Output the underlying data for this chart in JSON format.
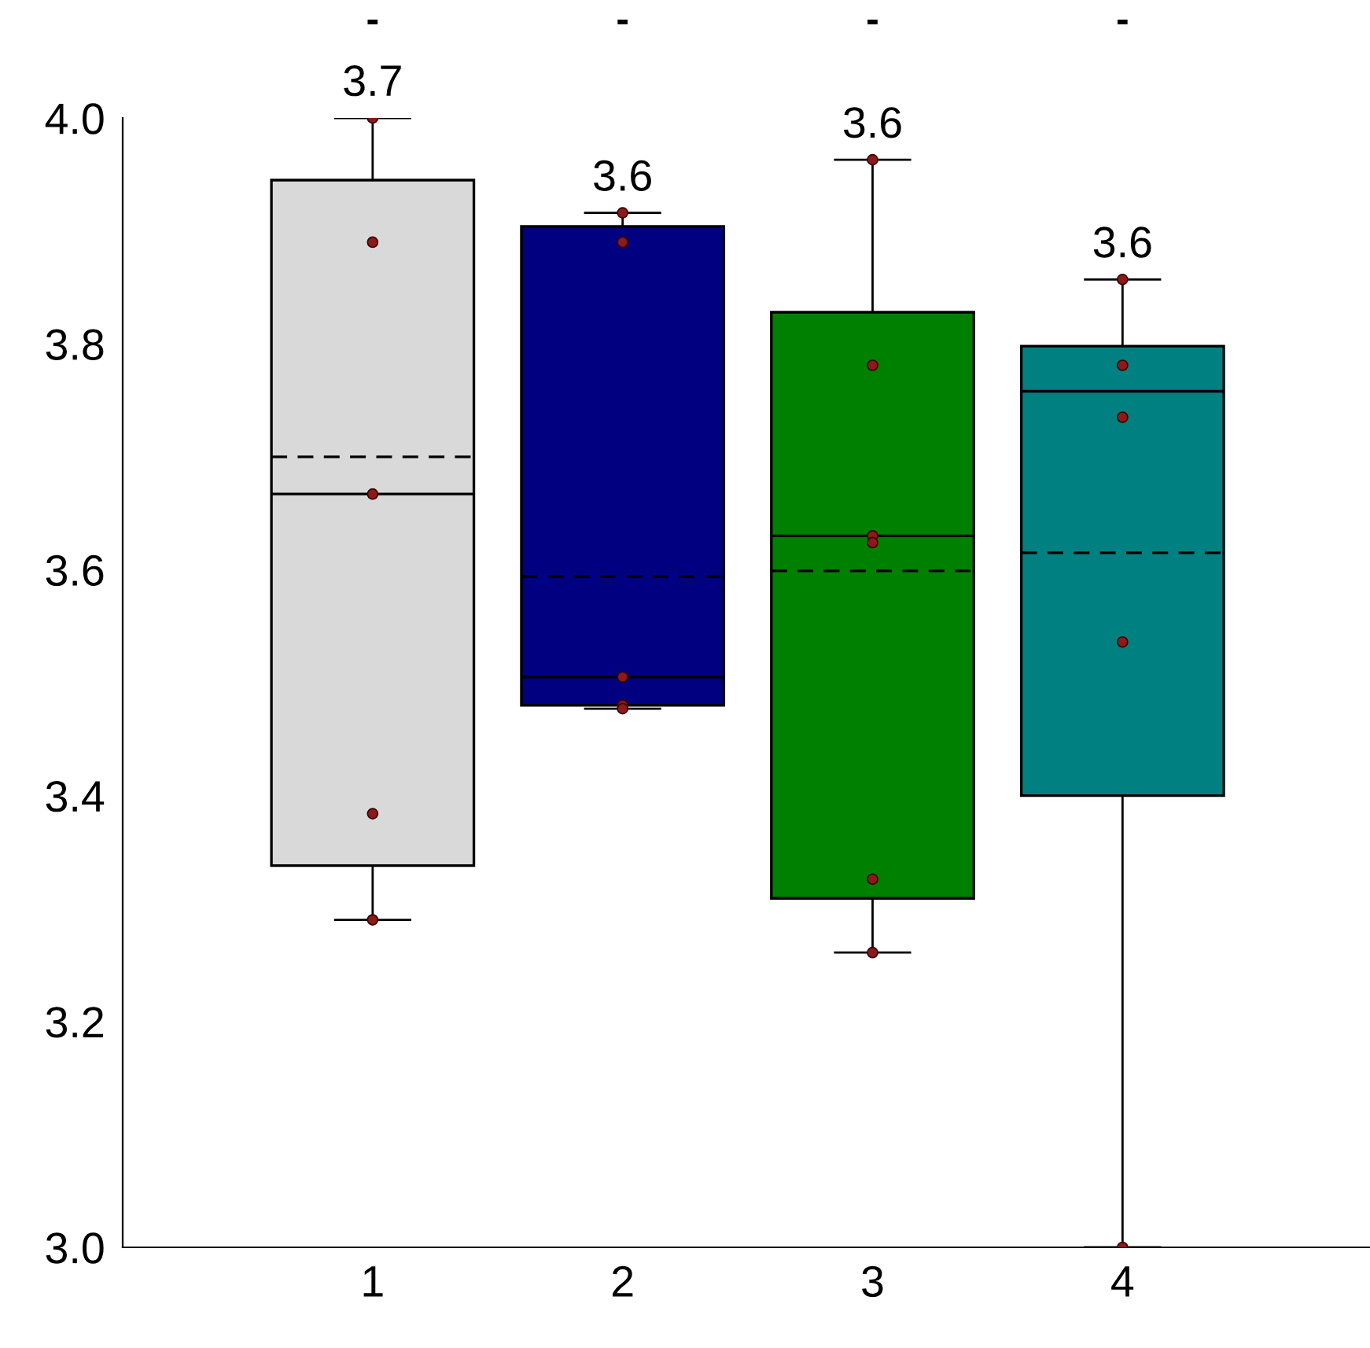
{
  "chart_data": {
    "type": "box",
    "categories": [
      "1",
      "2",
      "3",
      "4"
    ],
    "colors": [
      "#d9d9d9",
      "#000080",
      "#008000",
      "#008080"
    ],
    "boxes": [
      {
        "low": 3.29,
        "q1": 3.338,
        "median": 3.667,
        "q3": 3.945,
        "high": 4.0,
        "mean": 3.7
      },
      {
        "low": 3.477,
        "q1": 3.48,
        "median": 3.505,
        "q3": 3.904,
        "high": 3.916,
        "mean": 3.594
      },
      {
        "low": 3.261,
        "q1": 3.309,
        "median": 3.63,
        "q3": 3.828,
        "high": 3.963,
        "mean": 3.599
      },
      {
        "low": 3.0,
        "q1": 3.4,
        "median": 3.758,
        "q3": 3.798,
        "high": 3.857,
        "mean": 3.615
      }
    ],
    "series": [
      {
        "type": "scatter",
        "color": "#8b1a1a",
        "x": [
          "1",
          "1",
          "1",
          "1",
          "1",
          "2",
          "2",
          "2",
          "2",
          "2",
          "3",
          "3",
          "3",
          "3",
          "3",
          "3",
          "4",
          "4",
          "4",
          "4",
          "4"
        ],
        "values": [
          4.0,
          3.89,
          3.667,
          3.384,
          3.29,
          3.916,
          3.89,
          3.505,
          3.48,
          3.477,
          3.963,
          3.781,
          3.63,
          3.624,
          3.326,
          3.261,
          3.857,
          3.781,
          3.735,
          3.536,
          3.0
        ]
      }
    ],
    "annotations": [
      {
        "text": "3.7",
        "x": "1",
        "y": 4.0
      },
      {
        "text": "3.6",
        "x": "2",
        "y": 3.916
      },
      {
        "text": "3.6",
        "x": "3",
        "y": 3.963
      },
      {
        "text": "3.6",
        "x": "4",
        "y": 3.857
      },
      "-",
      "-",
      "-",
      "-"
    ],
    "ylim": [
      3.0,
      4.0
    ],
    "yticks": [
      {
        "value": 3.0,
        "label": "3.0"
      },
      {
        "value": 3.2,
        "label": "3.2"
      },
      {
        "value": 3.4,
        "label": "3.4"
      },
      {
        "value": 3.6,
        "label": "3.6"
      },
      {
        "value": 3.8,
        "label": "3.8"
      },
      {
        "value": 4.0,
        "label": "4.0"
      }
    ],
    "grid": false,
    "legend": false
  }
}
